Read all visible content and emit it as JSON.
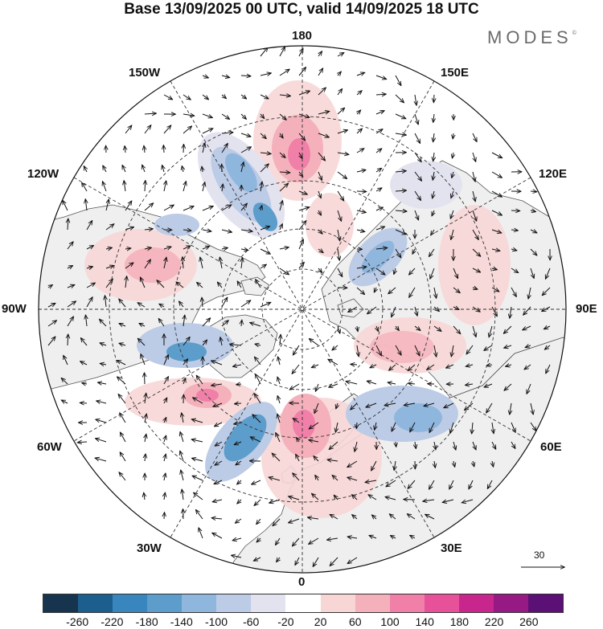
{
  "title": "Base 13/09/2025 00 UTC, valid 14/09/2025 18 UTC",
  "logo": "MODES",
  "logo_mark": "©",
  "longitude_labels": {
    "top": "180",
    "bottom": "0",
    "left": "90W",
    "right": "90E",
    "top_left": "150W",
    "top_right": "150E",
    "upper_left": "120W",
    "upper_right": "120E",
    "lower_left": "60W",
    "lower_right": "60E",
    "bottom_left": "30W",
    "bottom_right": "30E"
  },
  "reference_vector": "30",
  "colorbar": {
    "ticks": [
      "-260",
      "-220",
      "-180",
      "-140",
      "-100",
      "-60",
      "-20",
      "20",
      "60",
      "100",
      "140",
      "180",
      "220",
      "260"
    ],
    "colors": [
      "#17344f",
      "#1c5f8f",
      "#3985bd",
      "#5c9dcb",
      "#8fb6dc",
      "#bccbe6",
      "#e3e3f0",
      "#ffffff",
      "#f8d6d6",
      "#f4b1bb",
      "#f080a8",
      "#e6519a",
      "#c8268d",
      "#971a84",
      "#5b1075"
    ]
  },
  "colors": {
    "land": "#efefef",
    "coast": "#555555",
    "grid": "#333333"
  }
}
